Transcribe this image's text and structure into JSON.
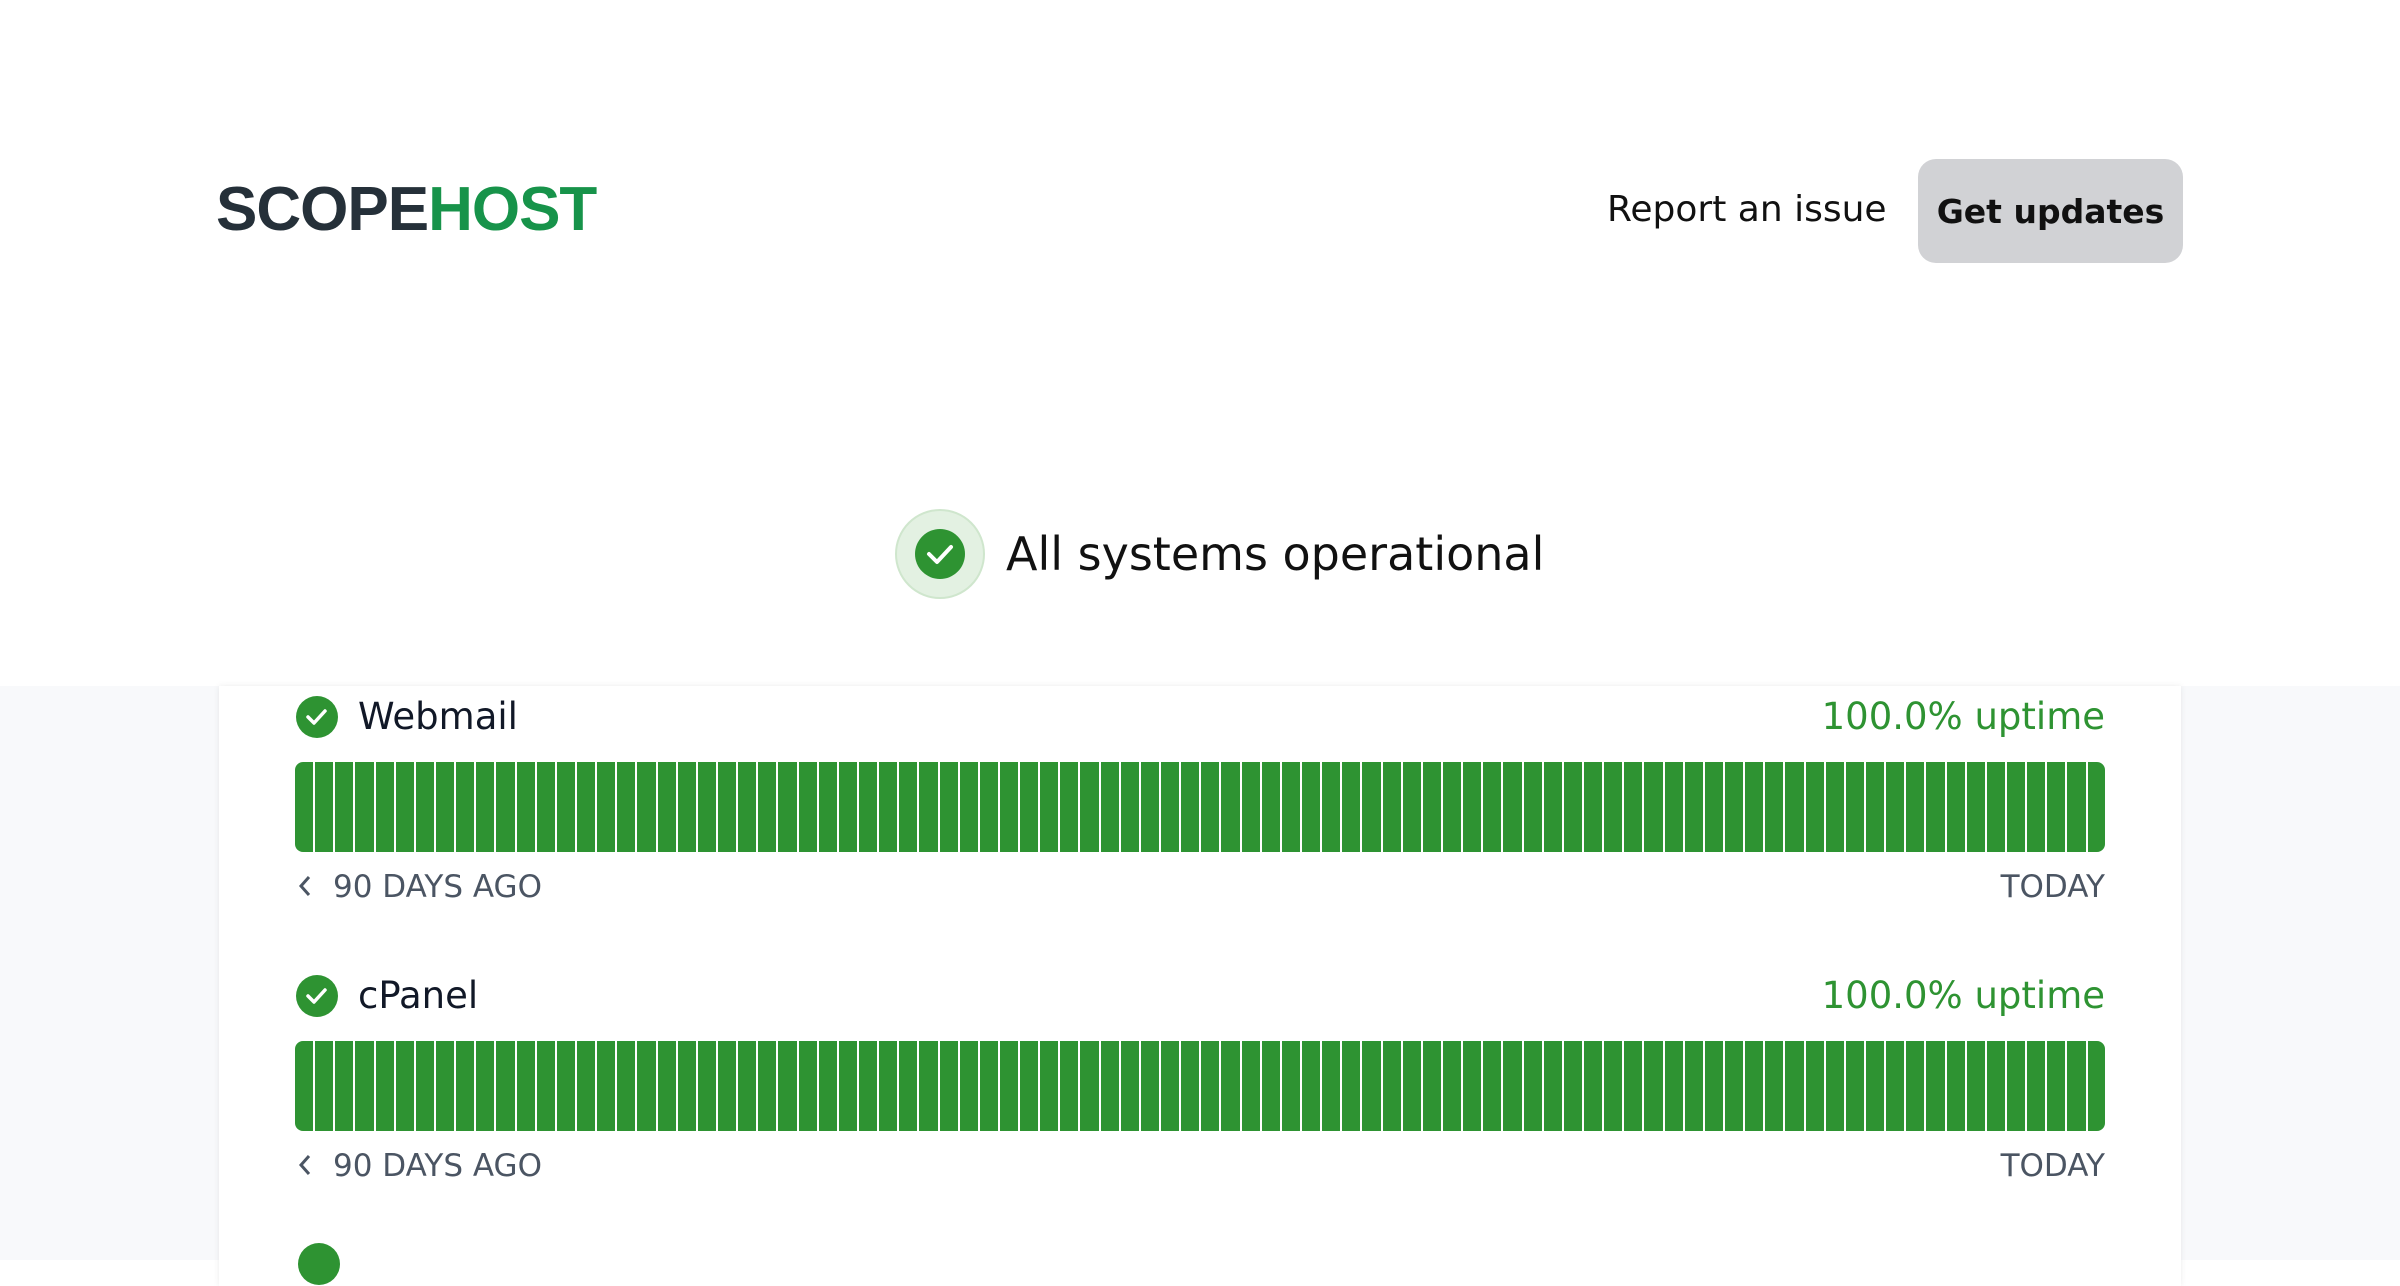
{
  "header": {
    "logo": {
      "part1": "SCOPE",
      "part2": "HOST"
    },
    "report_link": "Report an issue",
    "updates_button": "Get updates"
  },
  "status": {
    "text": "All systems operational"
  },
  "components": [
    {
      "name": "Webmail",
      "uptime": "100.0% uptime",
      "start_label": "90 DAYS AGO",
      "end_label": "TODAY"
    },
    {
      "name": "cPanel",
      "uptime": "100.0% uptime",
      "start_label": "90 DAYS AGO",
      "end_label": "TODAY"
    }
  ]
}
